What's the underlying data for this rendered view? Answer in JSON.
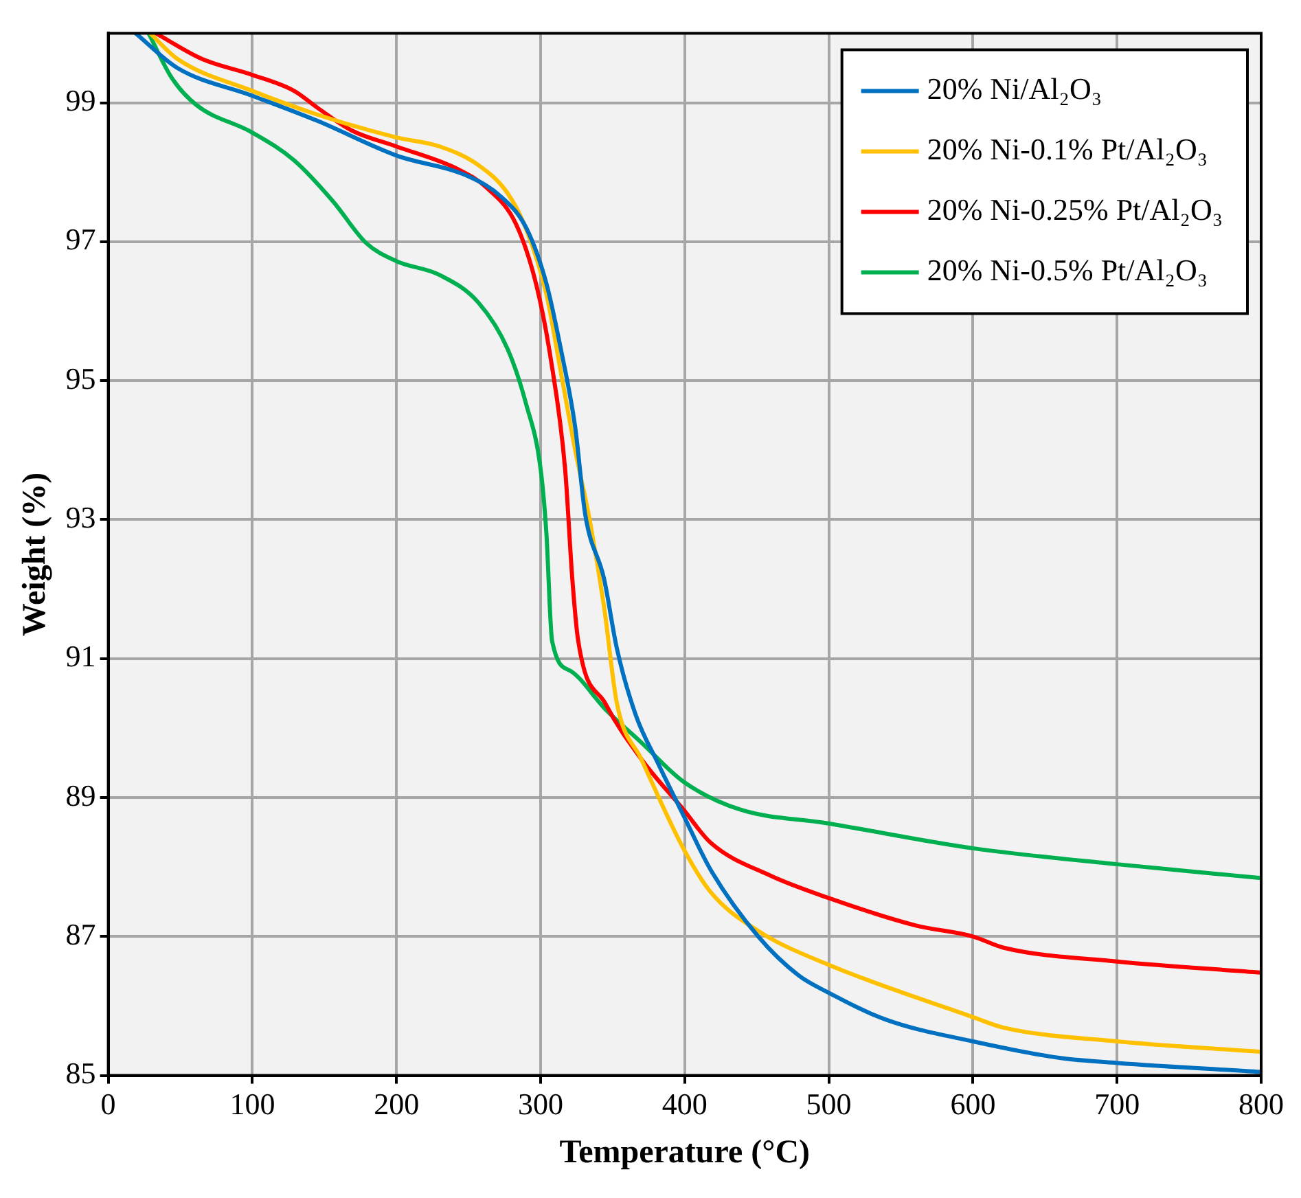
{
  "chart_data": {
    "type": "line",
    "xlabel": "Temperature (°C)",
    "ylabel": "Weight (%)",
    "xlim": [
      0,
      800
    ],
    "xticks": [
      0,
      100,
      200,
      300,
      400,
      500,
      600,
      700,
      800
    ],
    "ylim": [
      85,
      100
    ],
    "yticks": [
      85,
      87,
      89,
      91,
      93,
      95,
      97,
      99
    ],
    "grid": true,
    "legend": "top right",
    "marker": "none",
    "line_style": "solid",
    "series": [
      {
        "name": "20% Ni/Al₂O₃",
        "color": "#0070c0",
        "x": [
          19,
          48,
          100,
          145,
          200,
          250,
          273,
          290,
          304,
          314,
          324,
          331,
          344,
          353,
          366,
          382,
          399,
          418,
          451,
          479,
          499,
          540,
          600,
          661,
          700,
          800
        ],
        "values": [
          100,
          99.5,
          99.1,
          98.74,
          98.24,
          97.94,
          97.64,
          97.2,
          96.4,
          95.46,
          94.33,
          93.07,
          92.15,
          91.14,
          90.19,
          89.47,
          88.75,
          87.96,
          87.0,
          86.44,
          86.2,
          85.8,
          85.49,
          85.25,
          85.18,
          85.05
        ]
      },
      {
        "name": "20% Ni-0.1% Pt/Al₂O₃",
        "color": "#ffc000",
        "x": [
          29,
          48,
          100,
          145,
          200,
          230,
          257,
          277,
          290,
          304,
          314,
          324,
          334,
          344,
          353,
          370,
          399,
          418,
          451,
          499,
          600,
          621,
          700,
          800
        ],
        "values": [
          100,
          99.63,
          99.17,
          98.83,
          98.5,
          98.37,
          98.1,
          97.7,
          97.18,
          96.25,
          95.13,
          94.0,
          93.0,
          91.75,
          90.35,
          89.55,
          88.27,
          87.64,
          87.08,
          86.6,
          85.84,
          85.69,
          85.49,
          85.34
        ]
      },
      {
        "name": "20% Ni-0.25% Pt/Al₂O₃",
        "color": "#ff0000",
        "x": [
          33,
          65,
          100,
          129,
          145,
          169,
          200,
          243,
          263,
          283,
          297,
          307,
          317,
          322,
          326,
          345,
          370,
          399,
          418,
          459,
          499,
          560,
          600,
          621,
          700,
          800
        ],
        "values": [
          100,
          99.63,
          99.4,
          99.17,
          98.93,
          98.6,
          98.37,
          98.04,
          97.77,
          97.25,
          96.38,
          95.32,
          93.73,
          92.15,
          91.27,
          90.35,
          89.55,
          88.83,
          88.35,
          87.88,
          87.56,
          87.16,
          87.0,
          86.84,
          86.64,
          86.48
        ]
      },
      {
        "name": "20% Ni-0.5% Pt/Al₂O₃",
        "color": "#00b050",
        "x": [
          28,
          44,
          61,
          100,
          129,
          156,
          179,
          200,
          230,
          257,
          277,
          290,
          300,
          304,
          308,
          321,
          345,
          370,
          399,
          438,
          499,
          600,
          700,
          800
        ],
        "values": [
          100,
          99.36,
          98.97,
          98.57,
          98.17,
          97.58,
          96.98,
          96.72,
          96.52,
          96.12,
          95.46,
          94.66,
          93.73,
          92.81,
          91.25,
          90.82,
          90.27,
          89.79,
          89.23,
          88.83,
          88.63,
          88.27,
          88.04,
          87.84
        ]
      }
    ]
  }
}
